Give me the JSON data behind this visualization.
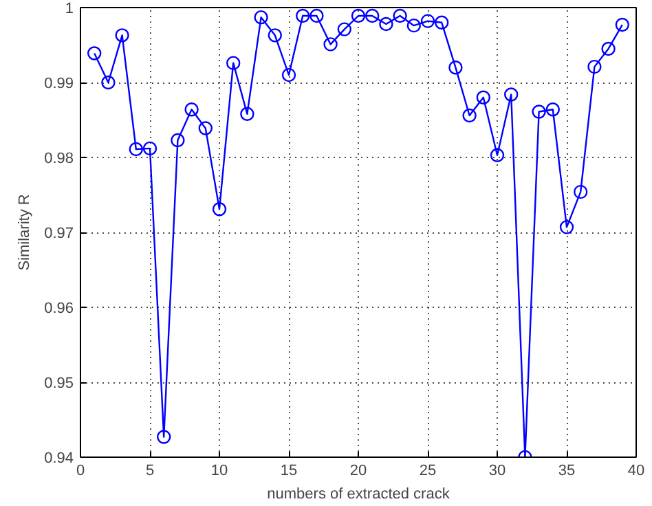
{
  "chart_data": {
    "type": "line",
    "xlabel": "numbers of extracted crack",
    "ylabel": "Similarity R",
    "x": [
      1,
      2,
      3,
      4,
      5,
      6,
      7,
      8,
      9,
      10,
      11,
      12,
      13,
      14,
      15,
      16,
      17,
      18,
      19,
      20,
      21,
      22,
      23,
      24,
      25,
      26,
      27,
      28,
      29,
      30,
      31,
      32,
      33,
      34,
      35,
      36,
      37,
      38,
      39
    ],
    "series": [
      {
        "color": "#0000ff",
        "values": [
          0.9939,
          0.99,
          0.9963,
          0.9811,
          0.9812,
          0.9427,
          0.9823,
          0.9864,
          0.9839,
          0.9731,
          0.9926,
          0.9858,
          0.9987,
          0.9963,
          0.991,
          0.9989,
          0.9989,
          0.9951,
          0.9971,
          0.9989,
          0.9989,
          0.9978,
          0.9989,
          0.9976,
          0.9982,
          0.998,
          0.992,
          0.9856,
          0.988,
          0.9803,
          0.9884,
          0.94,
          0.9861,
          0.9864,
          0.9707,
          0.9754,
          0.9921,
          0.9945,
          0.9977
        ]
      }
    ],
    "xlim": [
      0,
      40
    ],
    "xticks": [
      0,
      5,
      10,
      15,
      20,
      25,
      30,
      35,
      40
    ],
    "ylim": [
      0.94,
      1
    ],
    "yticks": [
      0.94,
      0.95,
      0.96,
      0.97,
      0.98,
      0.99,
      1
    ],
    "grid": true,
    "marker": "circle",
    "line_style": "solid"
  }
}
